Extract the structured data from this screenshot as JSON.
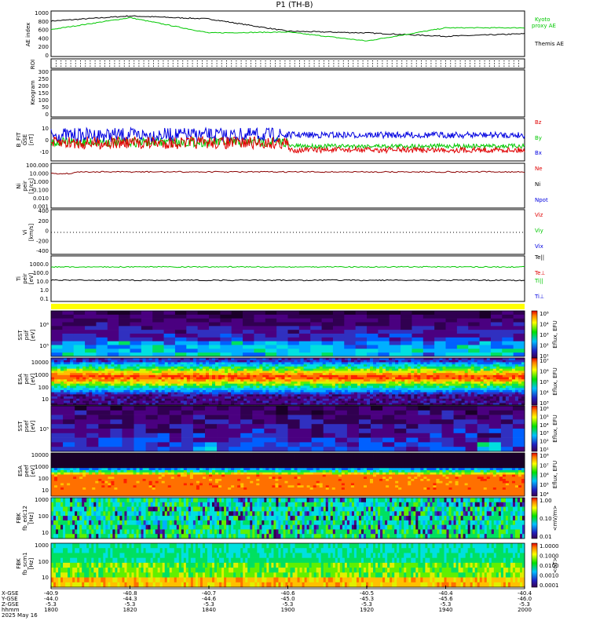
{
  "title": "P1 (TH-B)",
  "colors": {
    "green": "#00c800",
    "red": "#e00000",
    "blue": "#0000e0",
    "black": "#000000",
    "yellow": "#ffff00",
    "orange": "#ff8c00"
  },
  "panels": {
    "ae": {
      "ylabel": "AE index",
      "ticks": [
        "1000",
        "800",
        "600",
        "400",
        "200",
        "0"
      ],
      "legend": [
        "Kyoto",
        "proxy AE",
        "Themis AE"
      ]
    },
    "roi": {
      "ylabel": "ROI"
    },
    "keogram": {
      "ylabel": "Keogram"
    },
    "bfield": {
      "ylabel": "B_FIT",
      "sub1": "GSE",
      "sub2": "[nT]",
      "ticks": [
        "10",
        "0",
        "-10"
      ],
      "legend": [
        "Bz",
        "By",
        "Bx"
      ]
    },
    "density": {
      "ylabel": "Ni",
      "sub1": "peir",
      "sub2": "[1/cc]",
      "ticks": [
        "100.000",
        "10.000",
        "1.000",
        "0.100",
        "0.010",
        "0.001"
      ],
      "legend": [
        "Ne",
        "Ni",
        "Npot"
      ]
    },
    "velocity": {
      "ylabel": "Vi",
      "sub1": "[km/s]",
      "ticks": [
        "400",
        "200",
        "0",
        "-200",
        "-400"
      ],
      "legend": [
        "Viz",
        "Viy",
        "Vix"
      ]
    },
    "temp": {
      "ylabel": "Ti",
      "sub1": "peir",
      "sub2": "[eV]",
      "ticks": [
        "1000.0",
        "100.0",
        "10.0",
        "1.0",
        "0.1"
      ],
      "legend": [
        "Te||",
        "Te⊥",
        "Ti||",
        "Ti⊥"
      ]
    },
    "sst_ion": {
      "ylabel": "SST",
      "sub1": "psif",
      "sub2": "[eV]",
      "ticks": [
        "10⁶",
        "10⁵"
      ]
    },
    "esa_ion": {
      "ylabel": "ESA",
      "sub1": "peif",
      "sub2": "[eV]",
      "ticks": [
        "10000",
        "1000",
        "100",
        "10"
      ]
    },
    "sst_ele": {
      "ylabel": "SST",
      "sub1": "psef",
      "sub2": "[eV]",
      "ticks": [
        "10⁵"
      ]
    },
    "esa_ele": {
      "ylabel": "ESA",
      "sub1": "peef",
      "sub2": "[eV]",
      "ticks": [
        "10000",
        "1000",
        "100",
        "10"
      ]
    },
    "fbk_e": {
      "ylabel": "FBK",
      "sub1": "fb_edc12",
      "sub2": "[Hz]",
      "ticks": [
        "1000",
        "100",
        "10"
      ]
    },
    "fbk_b": {
      "ylabel": "FBK",
      "sub1": "fb_scm1",
      "sub2": "[Hz]",
      "ticks": [
        "1000",
        "100",
        "10"
      ]
    }
  },
  "colorbars": [
    {
      "label": "Eflux, EFU",
      "ticks": [
        "10⁸",
        "10⁴",
        "10³",
        "10²",
        "10¹"
      ]
    },
    {
      "label": "Eflux, EFU",
      "ticks": [
        "10⁷",
        "10⁶",
        "10⁵",
        "10⁴",
        "10³"
      ]
    },
    {
      "label": "Eflux, EFU",
      "ticks": [
        "10⁶",
        "10⁵",
        "10⁴",
        "10³",
        "10²",
        "10¹"
      ]
    },
    {
      "label": "Eflux, EFU",
      "ticks": [
        "10⁸",
        "10⁷",
        "10⁶",
        "10⁵",
        "10⁴"
      ]
    },
    {
      "label": "<mV/m>",
      "ticks": [
        "1.00",
        "0.10",
        "0.01"
      ]
    },
    {
      "label": "<nT>",
      "ticks": [
        "1.0000",
        "0.1000",
        "0.0100",
        "0.0010",
        "0.0001"
      ]
    }
  ],
  "time_axis": {
    "row_labels": [
      "X-GSE",
      "Y-GSE",
      "Z-GSE",
      "hhmm",
      "2025 May 16"
    ],
    "columns": [
      [
        "-40.9",
        "-44.0",
        "-5.3",
        "1800"
      ],
      [
        "-40.8",
        "-44.3",
        "-5.3",
        "1820"
      ],
      [
        "-40.7",
        "-44.6",
        "-5.3",
        "1840"
      ],
      [
        "-40.6",
        "-45.0",
        "-5.3",
        "1900"
      ],
      [
        "-40.5",
        "-45.3",
        "-5.3",
        "1920"
      ],
      [
        "-40.4",
        "-45.6",
        "-5.3",
        "1940"
      ],
      [
        "-40.4",
        "-46.0",
        "-5.3",
        "2000"
      ]
    ]
  },
  "chart_data": {
    "type": "line",
    "title": "P1 (TH-B)",
    "x": [
      "1800",
      "1820",
      "1840",
      "1900",
      "1920",
      "1940",
      "2000"
    ],
    "series": [
      {
        "name": "Themis AE",
        "values": [
          800,
          920,
          850,
          560,
          520,
          440,
          500
        ]
      },
      {
        "name": "Kyoto proxy AE",
        "values": [
          600,
          880,
          520,
          540,
          330,
          640,
          640
        ]
      }
    ],
    "ylabel": "AE index",
    "ylim": [
      0,
      1000
    ]
  }
}
